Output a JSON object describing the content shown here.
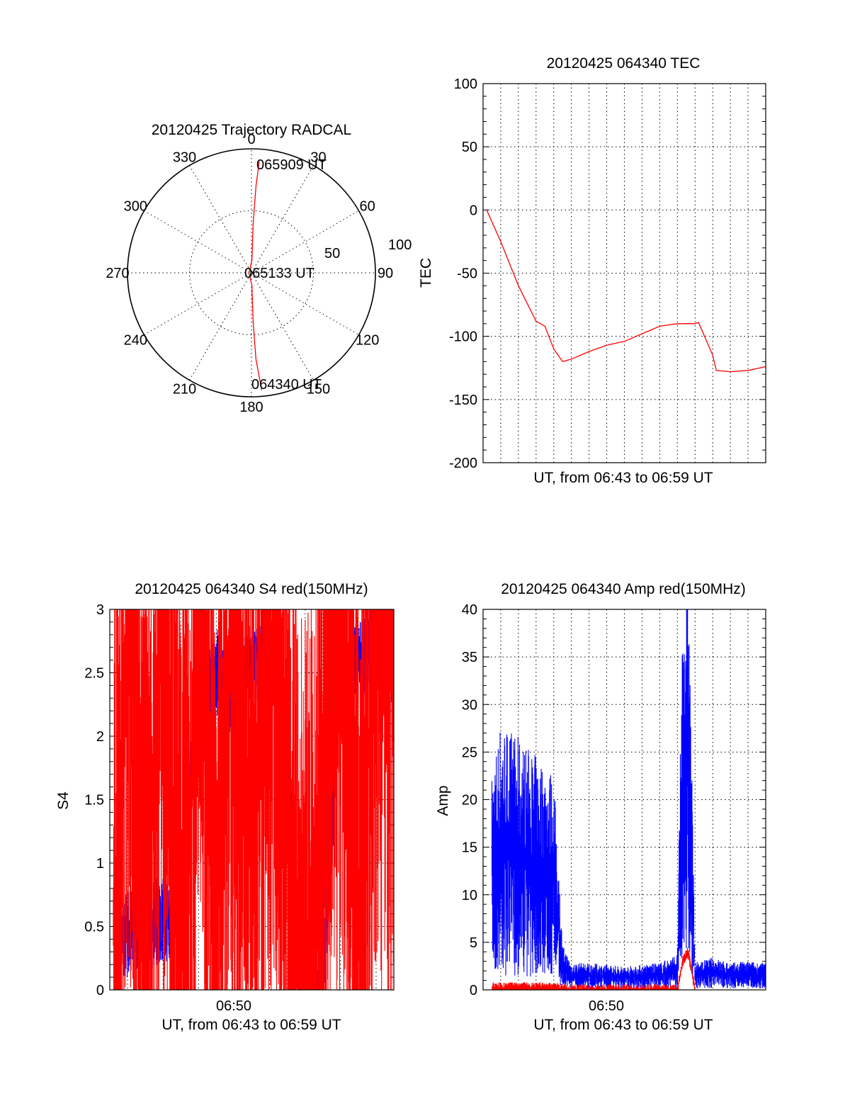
{
  "colors": {
    "red": "#ff0000",
    "blue": "#0000ff",
    "axis": "#000000"
  },
  "chart_data": [
    {
      "type": "polar",
      "title": "20120425 Trajectory RADCAL",
      "angle_labels": [
        "0",
        "30",
        "60",
        "90",
        "120",
        "150",
        "180",
        "210",
        "240",
        "270",
        "300",
        "330"
      ],
      "radius_labels": [
        "50",
        "100"
      ],
      "rlim": [
        0,
        100
      ],
      "annotations": [
        "065909 UT",
        "065133 UT",
        "064340 UT"
      ],
      "trajectory": {
        "color": "red",
        "points": [
          {
            "r": 95,
            "theta": 175
          },
          {
            "r": 70,
            "theta": 177
          },
          {
            "r": 40,
            "theta": 178
          },
          {
            "r": 10,
            "theta": 178
          },
          {
            "r": 2,
            "theta": 270
          },
          {
            "r": 10,
            "theta": 2
          },
          {
            "r": 40,
            "theta": 2
          },
          {
            "r": 70,
            "theta": 3
          },
          {
            "r": 90,
            "theta": 4
          }
        ]
      }
    },
    {
      "type": "line",
      "title": "20120425 064340 TEC",
      "xlabel": "UT, from 06:43 to 06:59 UT",
      "ylabel": "TEC",
      "xlim": [
        0,
        16
      ],
      "ylim": [
        -200,
        100
      ],
      "yticks": [
        "100",
        "50",
        "0",
        "-50",
        "-100",
        "-150",
        "-200"
      ],
      "grid": true,
      "series": [
        {
          "color": "red",
          "x": [
            0.2,
            1.0,
            2.0,
            3.0,
            3.5,
            4.0,
            4.5,
            5.0,
            6.0,
            7.0,
            8.0,
            9.0,
            10.0,
            11.0,
            12.0,
            12.2,
            13.0,
            13.2,
            14.0,
            15.0,
            16.0
          ],
          "y": [
            0,
            -25,
            -60,
            -88,
            -92,
            -110,
            -120,
            -118,
            -112,
            -107,
            -104,
            -98,
            -92,
            -90,
            -90,
            -89,
            -115,
            -127,
            -128,
            -127,
            -124
          ]
        }
      ]
    },
    {
      "type": "line",
      "title": "20120425 064340 S4 red(150MHz)",
      "xlabel": "UT, from 06:43 to 06:59 UT",
      "ylabel": "S4",
      "xlim": [
        0,
        16
      ],
      "ylim": [
        0,
        3
      ],
      "xticks": [
        {
          "x": 7,
          "label": "06:50"
        }
      ],
      "yticks": [
        "3",
        "2.5",
        "2",
        "1.5",
        "1",
        "0.5",
        "0"
      ],
      "grid": true,
      "series": [
        {
          "color": "blue",
          "x": [
            0.2,
            1.0,
            2.0,
            3.0,
            4.0,
            4.5,
            5.0,
            6.0,
            7.0,
            8.0,
            9.0,
            10.0,
            10.6,
            11.0,
            11.5,
            12.0,
            13.0,
            14.0,
            15.0,
            16.0
          ],
          "y": [
            0.4,
            0.45,
            0.5,
            0.55,
            0.6,
            1.6,
            2.2,
            2.5,
            2.3,
            2.6,
            2.7,
            2.1,
            0.35,
            0.4,
            0,
            0,
            2.5,
            2.6,
            2.7,
            2.5
          ]
        },
        {
          "color": "red",
          "x": [
            0.2,
            1.0,
            2.0,
            3.0,
            4.0,
            4.5,
            5.0,
            6.0,
            7.0,
            8.0,
            9.0,
            10.0,
            10.6,
            11.0,
            11.5,
            12.0,
            13.0,
            14.0,
            15.0,
            16.0
          ],
          "y": [
            0.35,
            3,
            0.4,
            3,
            0.5,
            1.2,
            3,
            0.8,
            3,
            1.4,
            2.8,
            1.5,
            0.25,
            0.3,
            0,
            1.5,
            3,
            0.4,
            3,
            2.5
          ]
        }
      ]
    },
    {
      "type": "line",
      "title": "20120425 064340 Amp red(150MHz)",
      "xlabel": "UT, from 06:43 to 06:59 UT",
      "ylabel": "Amp",
      "xlim": [
        0,
        16
      ],
      "ylim": [
        0,
        40
      ],
      "xticks": [
        {
          "x": 7,
          "label": "06:50"
        }
      ],
      "yticks": [
        "40",
        "35",
        "30",
        "25",
        "20",
        "15",
        "10",
        "5",
        "0"
      ],
      "grid": true,
      "series": [
        {
          "color": "blue",
          "x": [
            0.5,
            1.0,
            2.0,
            3.0,
            4.0,
            4.5,
            5.0,
            6.0,
            7.0,
            8.0,
            9.0,
            10.0,
            11.0,
            11.3,
            11.6,
            12.0,
            13.0,
            14.0,
            15.0,
            16.0
          ],
          "y": [
            12,
            15,
            14,
            13,
            12,
            2.5,
            1.5,
            1.5,
            1.4,
            1.3,
            1.4,
            1.5,
            2,
            22,
            25,
            1.5,
            1.8,
            1.5,
            1.6,
            1.5
          ]
        },
        {
          "color": "red",
          "x": [
            0.5,
            2.0,
            4.0,
            4.5,
            11.0,
            11.3,
            11.6,
            12.0
          ],
          "y": [
            0.2,
            0.2,
            0.2,
            0,
            0,
            3,
            4,
            0
          ]
        }
      ]
    }
  ]
}
